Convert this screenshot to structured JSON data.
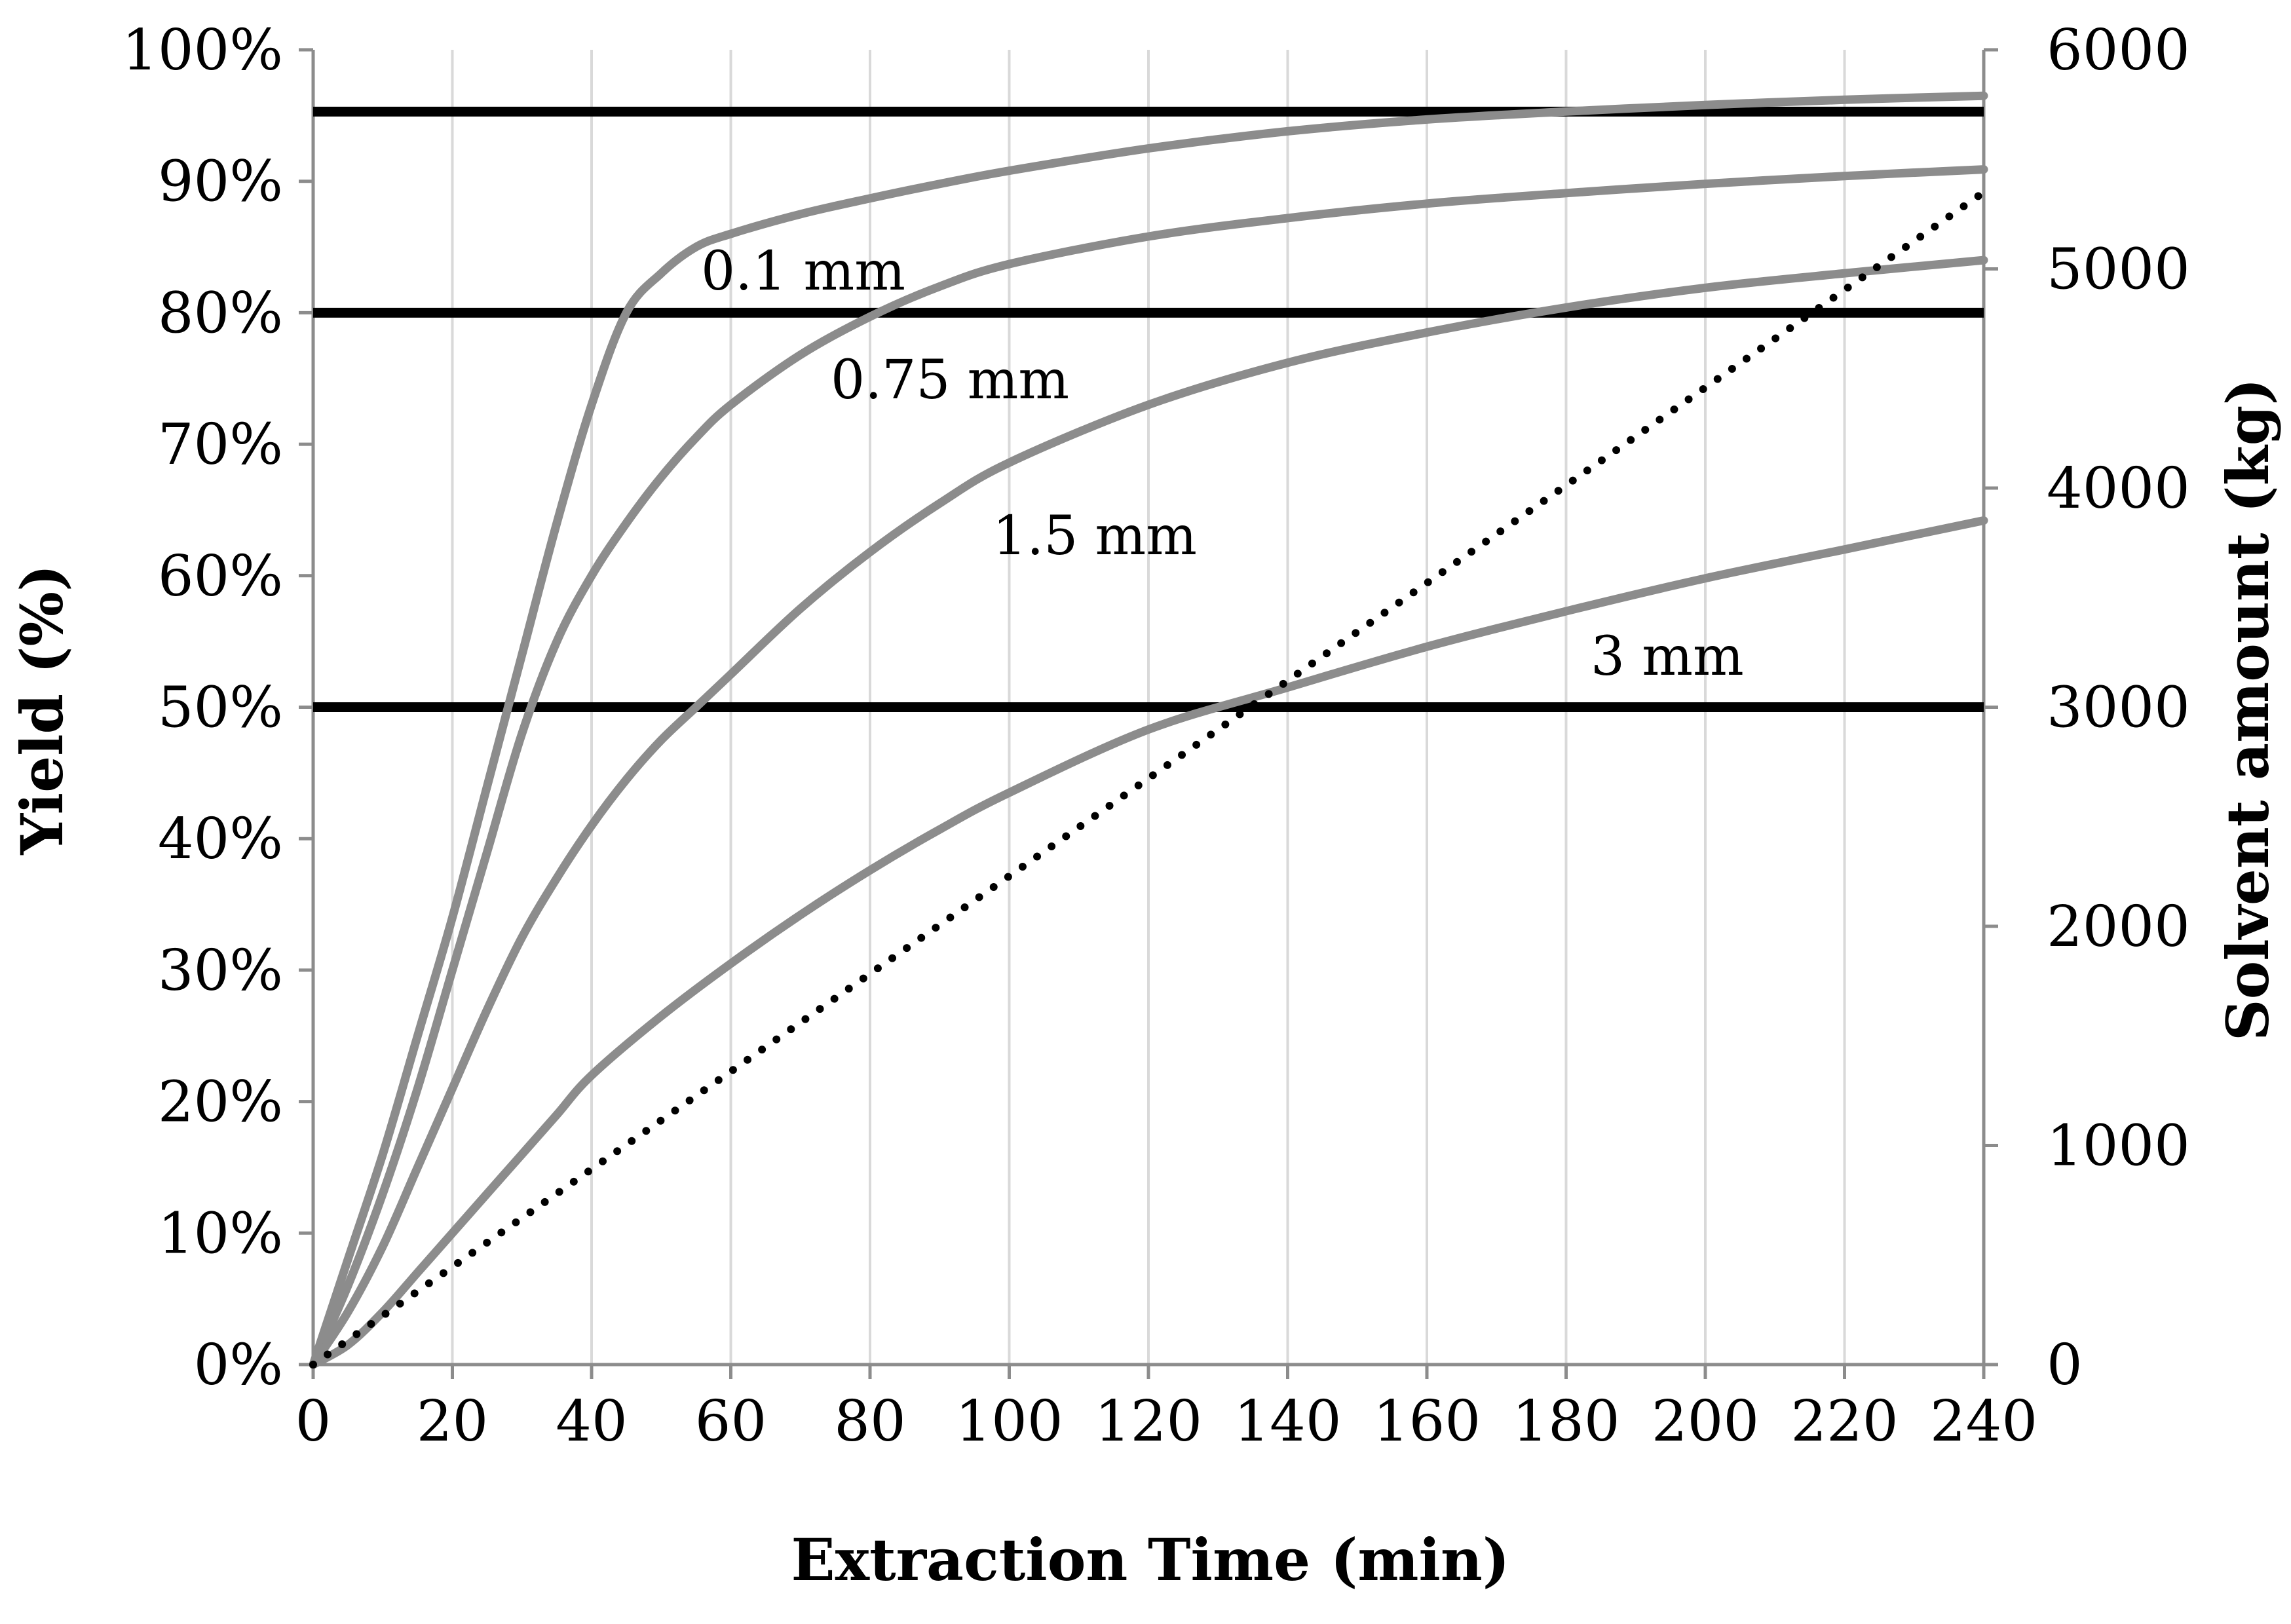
{
  "chart_data": {
    "type": "line",
    "title": "",
    "xlabel": "Extraction Time (min)",
    "ylabel": "Yield (%)",
    "y2label": "Solvent amount (kg)",
    "xlim": [
      0,
      240
    ],
    "ylim": [
      0,
      100
    ],
    "y2lim": [
      0,
      6000
    ],
    "x_ticks": [
      "0",
      "20",
      "40",
      "60",
      "80",
      "100",
      "120",
      "140",
      "160",
      "180",
      "200",
      "220",
      "240"
    ],
    "y_ticks": [
      "0%",
      "10%",
      "20%",
      "30%",
      "40%",
      "50%",
      "60%",
      "70%",
      "80%",
      "90%",
      "100%"
    ],
    "y2_ticks": [
      "0",
      "1000",
      "2000",
      "3000",
      "4000",
      "5000",
      "6000"
    ],
    "x_grid": true,
    "colors": {
      "curves": "#8c8c8c",
      "reference": "#000000",
      "grid": "#d9d9d9",
      "axis": "#8c8c8c"
    },
    "series": [
      {
        "name": "0.1 mm",
        "label": "0.1 mm",
        "axis": "left",
        "x": [
          0,
          5,
          10,
          15,
          20,
          25,
          30,
          35,
          40,
          45,
          50,
          55,
          60,
          70,
          80,
          90,
          100,
          120,
          140,
          160,
          180,
          200,
          220,
          240
        ],
        "y": [
          0,
          8,
          16,
          25,
          34,
          44,
          54,
          64,
          73,
          80,
          83,
          85,
          86,
          87.5,
          88.7,
          89.8,
          90.8,
          92.5,
          93.8,
          94.7,
          95.3,
          95.8,
          96.2,
          96.5
        ]
      },
      {
        "name": "0.75 mm",
        "label": "0.75 mm",
        "axis": "left",
        "x": [
          0,
          5,
          10,
          15,
          20,
          25,
          30,
          35,
          40,
          45,
          50,
          55,
          60,
          70,
          80,
          90,
          100,
          120,
          140,
          160,
          180,
          200,
          220,
          240
        ],
        "y": [
          0,
          6,
          13,
          21,
          30,
          39,
          48,
          55,
          60,
          64,
          67.5,
          70.5,
          73,
          76.8,
          79.7,
          82,
          83.7,
          85.8,
          87.2,
          88.3,
          89.1,
          89.8,
          90.4,
          90.9
        ]
      },
      {
        "name": "1.5 mm",
        "label": "1.5 mm",
        "axis": "left",
        "x": [
          0,
          5,
          10,
          15,
          20,
          25,
          30,
          35,
          40,
          45,
          50,
          55,
          60,
          70,
          80,
          90,
          100,
          120,
          140,
          160,
          180,
          200,
          220,
          240
        ],
        "y": [
          0,
          4,
          9,
          15,
          21,
          27,
          32.5,
          37,
          41,
          44.5,
          47.5,
          50,
          52.5,
          57.5,
          61.8,
          65.5,
          68.6,
          73,
          76.2,
          78.5,
          80.4,
          81.9,
          83,
          84
        ]
      },
      {
        "name": "3 mm",
        "label": "3 mm",
        "axis": "left",
        "x": [
          0,
          5,
          10,
          15,
          20,
          25,
          30,
          35,
          40,
          50,
          60,
          70,
          80,
          90,
          100,
          120,
          140,
          160,
          180,
          200,
          220,
          240
        ],
        "y": [
          0,
          1.5,
          4,
          7,
          10,
          13,
          16,
          19,
          22,
          26.5,
          30.5,
          34.2,
          37.6,
          40.7,
          43.5,
          48.3,
          51.5,
          54.6,
          57.3,
          59.8,
          62,
          64.2
        ]
      },
      {
        "name": "Solvent amount",
        "axis": "right",
        "style": "dotted",
        "x": [
          0,
          240
        ],
        "y": [
          0,
          5350
        ]
      }
    ],
    "reference_lines": [
      {
        "axis": "left",
        "y": 95.3
      },
      {
        "axis": "left",
        "y": 80
      },
      {
        "axis": "left",
        "y": 50
      }
    ]
  }
}
